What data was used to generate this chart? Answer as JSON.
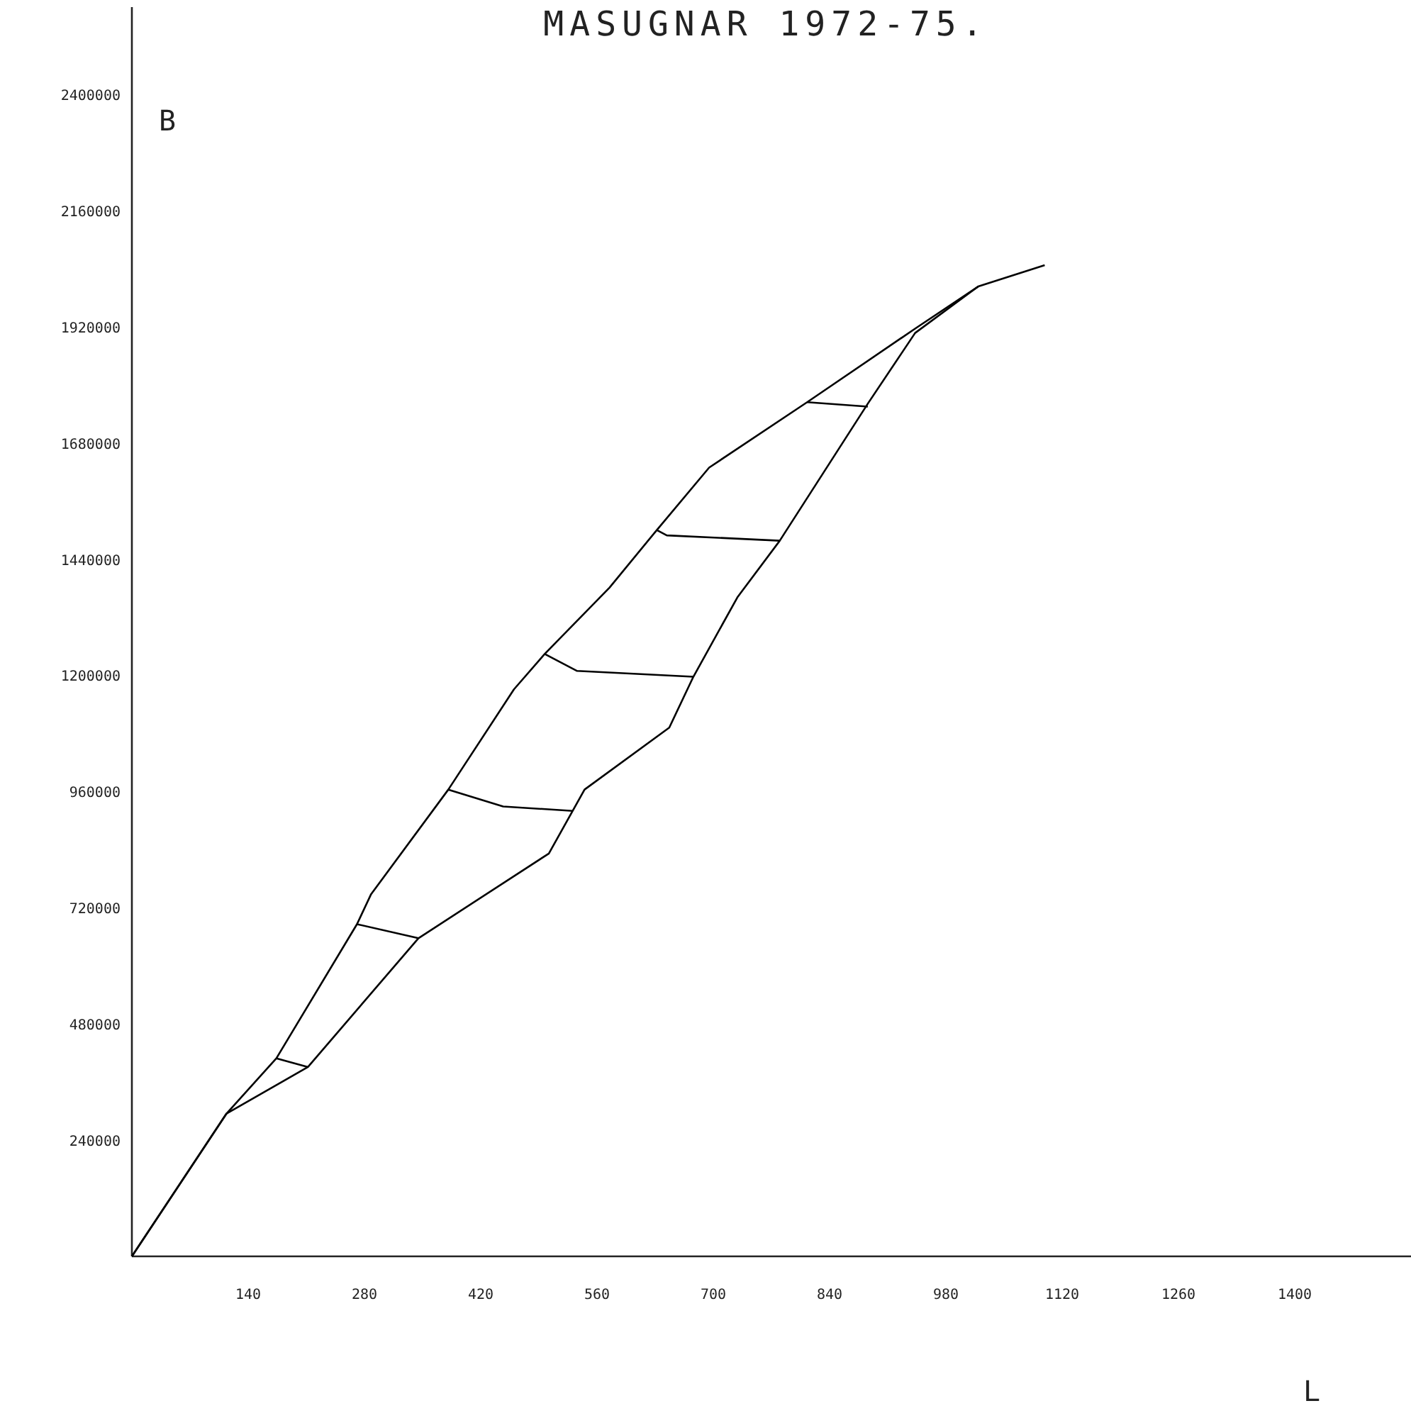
{
  "chart_data": {
    "type": "line",
    "title": "MASUGNAR 1972-75.",
    "xlabel": "L",
    "ylabel": "B",
    "xlim": [
      0,
      1540
    ],
    "ylim": [
      0,
      2580000
    ],
    "xticks": [
      140,
      280,
      420,
      560,
      700,
      840,
      980,
      1120,
      1260,
      1400
    ],
    "yticks": [
      240000,
      480000,
      720000,
      960000,
      1200000,
      1440000,
      1680000,
      1920000,
      2160000,
      2400000
    ],
    "grid": false,
    "marker": "none",
    "line_style": "solid",
    "series": [
      {
        "color": "#000000",
        "x": [
          0,
          114,
          174,
          271,
          288,
          381,
          460,
          497,
          575,
          632,
          695,
          813,
          943,
          1019,
          1099
        ],
        "values": [
          0,
          295000,
          409000,
          686000,
          748000,
          964000,
          1171000,
          1244000,
          1381000,
          1500000,
          1629000,
          1764000,
          1916000,
          2003000,
          2047000
        ]
      },
      {
        "color": "#000000",
        "x": [
          0,
          114,
          212,
          345,
          502,
          545,
          647,
          676,
          729,
          780,
          886,
          943,
          1019
        ],
        "values": [
          0,
          295000,
          391000,
          657000,
          832000,
          964000,
          1092000,
          1197000,
          1361000,
          1478000,
          1761000,
          1907000,
          2003000
        ]
      },
      {
        "color": "#000000",
        "x": [
          174,
          212
        ],
        "values": [
          409000,
          391000
        ]
      },
      {
        "color": "#000000",
        "x": [
          271,
          345
        ],
        "values": [
          686000,
          657000
        ]
      },
      {
        "color": "#000000",
        "x": [
          381,
          447,
          531
        ],
        "values": [
          964000,
          929000,
          920000
        ]
      },
      {
        "color": "#000000",
        "x": [
          497,
          536,
          676
        ],
        "values": [
          1244000,
          1209000,
          1197000
        ]
      },
      {
        "color": "#000000",
        "x": [
          632,
          644,
          780
        ],
        "values": [
          1500000,
          1489000,
          1478000
        ]
      },
      {
        "color": "#000000",
        "x": [
          813,
          886
        ],
        "values": [
          1764000,
          1755000
        ]
      }
    ]
  }
}
